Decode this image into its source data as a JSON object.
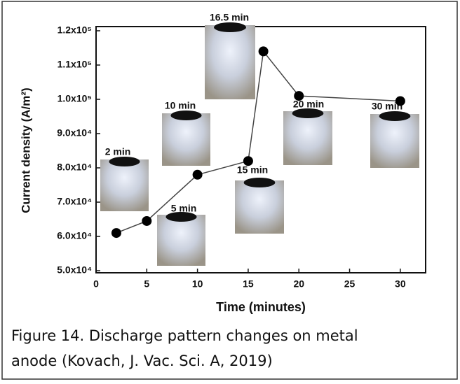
{
  "chart_data": {
    "type": "line",
    "x": [
      2,
      5,
      10,
      15,
      16.5,
      20,
      30
    ],
    "values": [
      61000,
      64500,
      78000,
      82000,
      114000,
      101000,
      99500
    ],
    "color": "#000000",
    "line_color": "#444444",
    "xlim": [
      0,
      32.5
    ],
    "xticks": [
      0,
      5,
      10,
      15,
      20,
      25,
      30
    ],
    "ylim": [
      50000,
      120000
    ],
    "yticks": [
      {
        "value": 50000,
        "label": "5.0x10⁴"
      },
      {
        "value": 60000,
        "label": "6.0x10⁴"
      },
      {
        "value": 70000,
        "label": "7.0x10⁴"
      },
      {
        "value": 80000,
        "label": "8.0x10⁴"
      },
      {
        "value": 90000,
        "label": "9.0x10⁴"
      },
      {
        "value": 100000,
        "label": "1.0x10⁵"
      },
      {
        "value": 110000,
        "label": "1.1x10⁵"
      },
      {
        "value": 120000,
        "label": "1.2x10⁵"
      }
    ],
    "xlabel": "Time (minutes)",
    "ylabel": "Current density (A/m²)",
    "annotations": [
      "2 min",
      "5 min",
      "10 min",
      "15 min",
      "16.5 min",
      "20 min",
      "30 min"
    ]
  },
  "caption": [
    "Figure 14.  Discharge pattern changes on metal",
    "anode (Kovach, J. Vac. Sci. A, 2019)"
  ]
}
